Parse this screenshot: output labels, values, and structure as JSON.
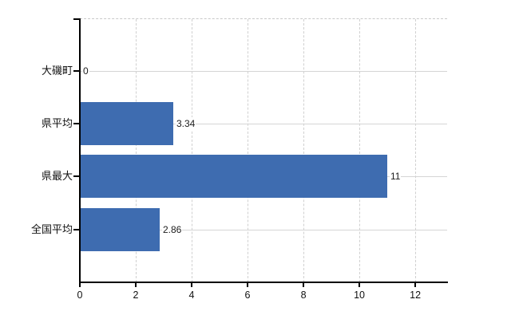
{
  "chart_data": {
    "type": "bar",
    "orientation": "horizontal",
    "title": "",
    "xlabel": "",
    "ylabel": "",
    "categories": [
      "大磯町",
      "県平均",
      "県最大",
      "全国平均"
    ],
    "values": [
      0,
      3.34,
      11,
      2.86
    ],
    "value_labels": [
      "0",
      "3.34",
      "11",
      "2.86"
    ],
    "x_ticks": [
      0,
      2,
      4,
      6,
      8,
      10,
      12
    ],
    "x_tick_labels": [
      "0",
      "2",
      "4",
      "6",
      "8",
      "10",
      "12"
    ],
    "xlim": [
      0,
      13.14
    ],
    "grid": "on",
    "legend": "none",
    "colors": {
      "bar": "#3e6cb0",
      "axis": "#000000",
      "gridline_vertical": "#d0d0d0",
      "gridline_horizontal": "#d5d5d5",
      "plot_top_border": "#c9c9c9",
      "text": "#111111",
      "background": "#ffffff"
    }
  }
}
